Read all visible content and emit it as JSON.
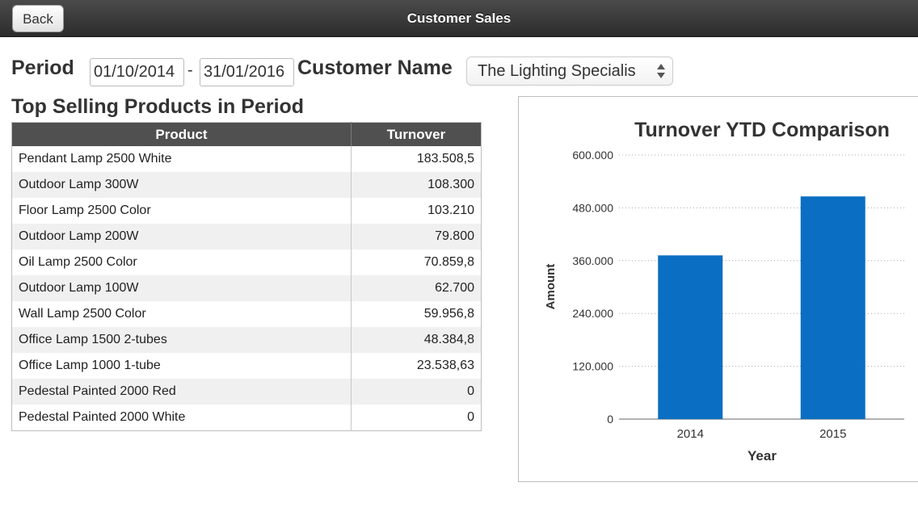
{
  "nav": {
    "back_label": "Back",
    "title": "Customer Sales"
  },
  "filters": {
    "period_label": "Period",
    "date_from": "01/10/2014",
    "date_separator": "-",
    "date_to": "31/01/2016",
    "customer_label": "Customer Name",
    "customer_value": "The Lighting Specialis"
  },
  "products": {
    "title": "Top Selling Products in Period",
    "columns": [
      "Product",
      "Turnover"
    ],
    "rows": [
      [
        "Pendant Lamp 2500 White",
        "183.508,5"
      ],
      [
        "Outdoor Lamp 300W",
        "108.300"
      ],
      [
        "Floor Lamp 2500 Color",
        "103.210"
      ],
      [
        "Outdoor Lamp 200W",
        "79.800"
      ],
      [
        "Oil Lamp 2500 Color",
        "70.859,8"
      ],
      [
        "Outdoor Lamp 100W",
        "62.700"
      ],
      [
        "Wall Lamp 2500 Color",
        "59.956,8"
      ],
      [
        "Office Lamp 1500 2-tubes",
        "48.384,8"
      ],
      [
        "Office Lamp 1000 1-tube",
        "23.538,63"
      ],
      [
        "Pedestal Painted 2000 Red",
        "0"
      ],
      [
        "Pedestal Painted 2000 White",
        "0"
      ]
    ]
  },
  "chart_data": {
    "type": "bar",
    "title": "Turnover YTD Comparison",
    "xlabel": "Year",
    "ylabel": "Amount",
    "categories": [
      "2014",
      "2015"
    ],
    "values": [
      372000,
      506000
    ],
    "ylim": [
      0,
      600000
    ],
    "yticks": [
      0,
      120000,
      240000,
      360000,
      480000,
      600000
    ],
    "ytick_labels": [
      "0",
      "120.000",
      "240.000",
      "360.000",
      "480.000",
      "600.000"
    ],
    "grid": true,
    "bar_color": "#0a6fc2"
  }
}
